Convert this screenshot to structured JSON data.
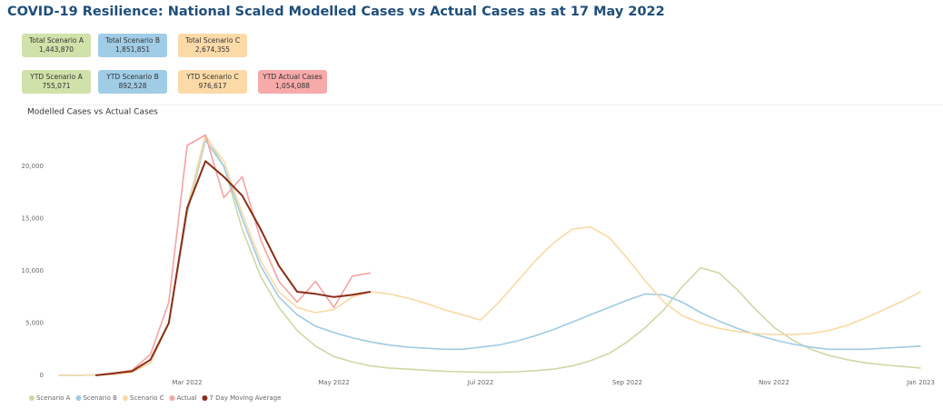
{
  "header": {
    "title": "COVID-19 Resilience:  National Scaled Modelled Cases vs Actual Cases as at 17 May 2022"
  },
  "cards": [
    {
      "label": "Total Scenario A",
      "value": "1,443,870",
      "color": "#d0e1a9"
    },
    {
      "label": "Total Scenario B",
      "value": "1,851,851",
      "color": "#a0cce6"
    },
    {
      "label": "Total Scenario C",
      "value": "2,674,355",
      "color": "#fcdaa8"
    },
    {
      "label": "YTD Scenario A",
      "value": "755,071",
      "color": "#d0e1a9"
    },
    {
      "label": "YTD Scenario B",
      "value": "892,528",
      "color": "#a0cce6"
    },
    {
      "label": "YTD Scenario C",
      "value": "976,617",
      "color": "#fcdaa8"
    },
    {
      "label": "YTD Actual Cases",
      "value": "1,054,088",
      "color": "#f7aaaa"
    }
  ],
  "chart_data": {
    "type": "line",
    "title": "Modelled Cases vs Actual Cases",
    "x": [
      0.25,
      0.5,
      0.75,
      1,
      1.25,
      1.5,
      1.75,
      2,
      2.25,
      2.5,
      2.75,
      3,
      3.25,
      3.5,
      3.75,
      4,
      4.25,
      4.5,
      4.75,
      5,
      5.25,
      5.5,
      5.75,
      6,
      6.25,
      6.5,
      6.75,
      7,
      7.25,
      7.5,
      7.75,
      8,
      8.25,
      8.5,
      8.75,
      9,
      9.25,
      9.5,
      9.75,
      10,
      10.25,
      10.5,
      10.75,
      11,
      11.25,
      11.5,
      11.75,
      12
    ],
    "xlim": [
      0,
      12.2
    ],
    "xticks": [
      {
        "value": 2,
        "label": "Mar 2022"
      },
      {
        "value": 4,
        "label": "May 2022"
      },
      {
        "value": 6,
        "label": "Jul 2022"
      },
      {
        "value": 8,
        "label": "Sep 2022"
      },
      {
        "value": 10,
        "label": "Nov 2022"
      },
      {
        "value": 12,
        "label": "Jan 2023"
      }
    ],
    "ylim": [
      0,
      25000
    ],
    "yticks": [
      0,
      {
        "value": 5000,
        "label": "5,000"
      },
      {
        "value": 10000,
        "label": "10,000"
      },
      {
        "value": 15000,
        "label": "15,000"
      },
      {
        "value": 20000,
        "label": "20,000"
      }
    ],
    "grid": false,
    "series": [
      {
        "name": "Scenario A",
        "color": "#cbd9a3",
        "values": [
          0,
          0,
          50,
          100,
          300,
          1200,
          5000,
          16000,
          23000,
          20000,
          14000,
          9500,
          6500,
          4300,
          2800,
          1800,
          1300,
          900,
          700,
          600,
          500,
          400,
          350,
          300,
          300,
          350,
          450,
          600,
          900,
          1400,
          2100,
          3200,
          4600,
          6300,
          8500,
          10300,
          9800,
          8200,
          6300,
          4600,
          3400,
          2500,
          1900,
          1500,
          1200,
          1000,
          850,
          700
        ]
      },
      {
        "name": "Scenario B",
        "color": "#9fcbe3",
        "values": [
          0,
          0,
          50,
          100,
          300,
          1200,
          5000,
          15500,
          22500,
          20000,
          15000,
          10500,
          7500,
          5800,
          4700,
          4100,
          3600,
          3200,
          2900,
          2700,
          2600,
          2500,
          2500,
          2700,
          2900,
          3300,
          3800,
          4400,
          5100,
          5800,
          6500,
          7200,
          7800,
          7700,
          7000,
          6000,
          5200,
          4500,
          3900,
          3400,
          3000,
          2700,
          2500,
          2500,
          2500,
          2600,
          2700,
          2800
        ]
      },
      {
        "name": "Scenario C",
        "color": "#f9d9a4",
        "values": [
          0,
          0,
          50,
          100,
          300,
          1200,
          5000,
          15800,
          22800,
          20500,
          15500,
          11000,
          8000,
          6500,
          6000,
          6300,
          7500,
          8000,
          7800,
          7400,
          6900,
          6300,
          5800,
          5300,
          7000,
          9000,
          11000,
          12700,
          14000,
          14200,
          13200,
          11200,
          9000,
          7000,
          5700,
          5000,
          4500,
          4200,
          4000,
          3900,
          3900,
          4000,
          4300,
          4800,
          5500,
          6300,
          7100,
          8000
        ]
      },
      {
        "name": "Actual",
        "color": "#f5a3a3",
        "values": [
          null,
          null,
          0,
          200,
          500,
          2000,
          7000,
          22000,
          23000,
          17000,
          19000,
          13000,
          9000,
          7000,
          9000,
          6500,
          9500,
          9800,
          null,
          null,
          null,
          null,
          null,
          null,
          null,
          null,
          null,
          null,
          null,
          null,
          null,
          null,
          null,
          null,
          null,
          null,
          null,
          null,
          null,
          null,
          null,
          null,
          null,
          null,
          null,
          null,
          null,
          null
        ]
      },
      {
        "name": "7 Day Moving Average",
        "color": "#8b2d14",
        "values": [
          null,
          null,
          0,
          200,
          400,
          1500,
          5000,
          16000,
          20500,
          19000,
          17200,
          14000,
          10500,
          8000,
          7800,
          7500,
          7700,
          8000,
          null,
          null,
          null,
          null,
          null,
          null,
          null,
          null,
          null,
          null,
          null,
          null,
          null,
          null,
          null,
          null,
          null,
          null,
          null,
          null,
          null,
          null,
          null,
          null,
          null,
          null,
          null,
          null,
          null,
          null
        ]
      }
    ]
  }
}
